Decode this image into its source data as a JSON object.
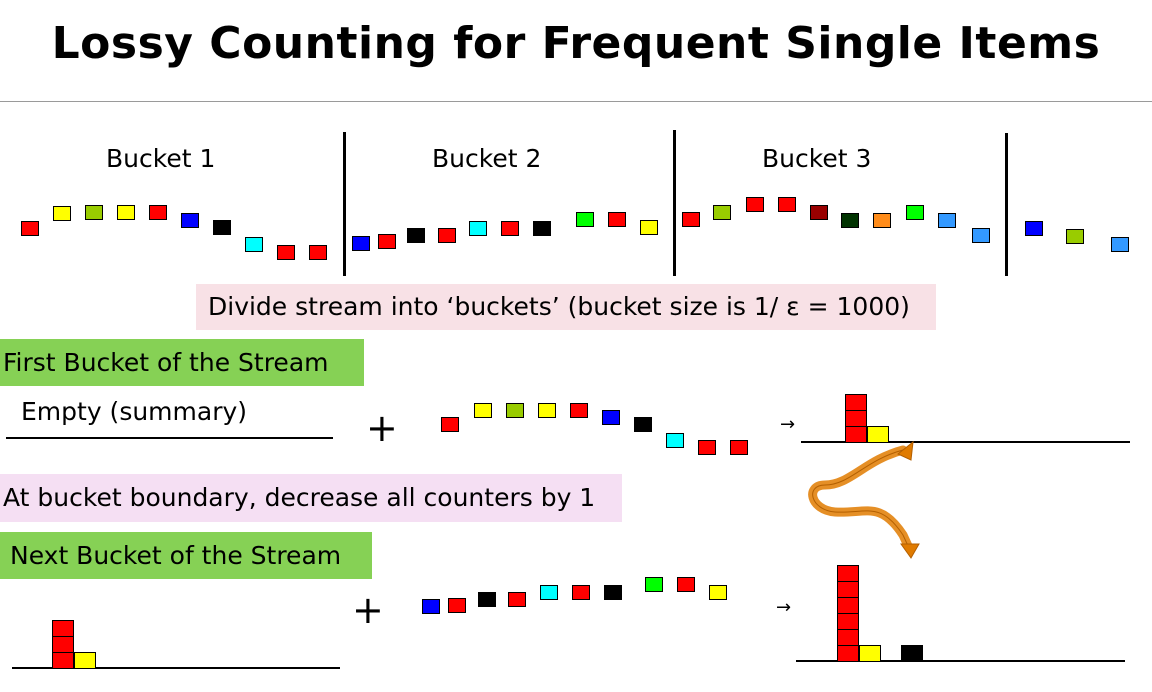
{
  "title": "Lossy Counting for Frequent Single Items",
  "buckets": [
    "Bucket 1",
    "Bucket 2",
    "Bucket 3"
  ],
  "divide_caption": "Divide stream into ‘buckets’ (bucket size is 1/ ε = 1000)",
  "first_bucket_label": "First Bucket of the Stream",
  "empty_summary": "Empty (summary)",
  "plus": "+",
  "boundary_caption": "At bucket boundary, decrease all counters by 1",
  "next_bucket_label": "Next Bucket of the Stream",
  "arrow_glyph": "→",
  "colors": {
    "red": "#ff0000",
    "yellow": "#ffff00",
    "olive": "#99cc00",
    "blue": "#0000ff",
    "black": "#000000",
    "cyan": "#00ffff",
    "green": "#00ff00",
    "darkred": "#990000",
    "darkgreen": "#003300",
    "orange": "#ff8c1a",
    "skyblue": "#3399ff",
    "swirl": "#e07b00"
  },
  "stream_items": {
    "bucket1": [
      "red",
      "yellow",
      "olive",
      "yellow",
      "red",
      "blue",
      "black",
      "cyan",
      "red",
      "red"
    ],
    "bucket2": [
      "blue",
      "red",
      "black",
      "red",
      "cyan",
      "red",
      "black",
      "green",
      "red",
      "yellow"
    ],
    "bucket3": [
      "red",
      "olive",
      "red",
      "red",
      "darkred",
      "darkgreen",
      "orange",
      "green",
      "skyblue",
      "skyblue"
    ],
    "bucket4": [
      "blue",
      "olive",
      "skyblue"
    ]
  },
  "summary_after_first": {
    "red": 3,
    "yellow": 1
  },
  "summary_after_second": {
    "red": 6,
    "yellow": 1,
    "black": 1
  }
}
